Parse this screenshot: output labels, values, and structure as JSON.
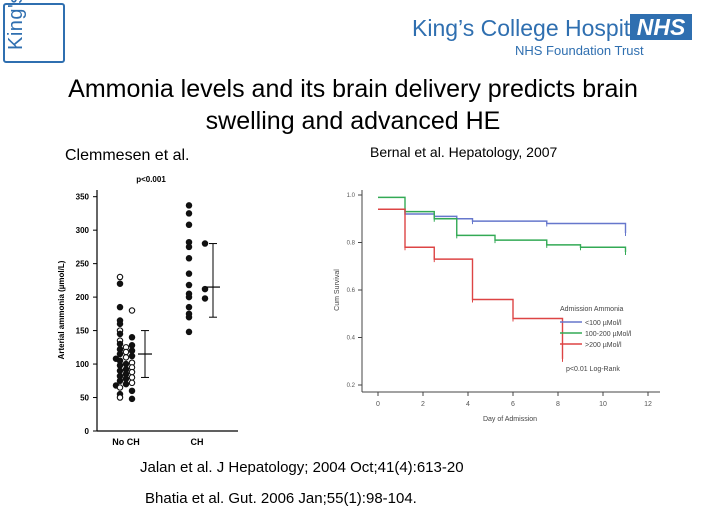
{
  "header": {
    "logo_text": "King's",
    "hospital_name": "King’s College Hospital",
    "trust_name": "NHS Foundation Trust",
    "nhs_badge": "NHS",
    "brand_color": "#2f6fb0"
  },
  "title": {
    "line1": "Ammonia levels and its brain delivery predicts brain",
    "line2": "swelling and advanced HE"
  },
  "left_caption": "Clemmesen et al.",
  "right_caption": "Bernal et al. Hepatology, 2007",
  "references": [
    "Jalan et al. J Hepatology; 2004 Oct;41(4):613-20",
    "Bhatia et al. Gut. 2006 Jan;55(1):98-104."
  ],
  "chart_data": [
    {
      "type": "scatter",
      "title": "p<0.001",
      "xlabel": "",
      "ylabel": "Arterial ammonia (µmol/L)",
      "categories": [
        "No CH",
        "CH"
      ],
      "y_ticks": [
        "0",
        "50",
        "100",
        "150",
        "200",
        "250",
        "300",
        "350"
      ],
      "ylim": [
        0,
        360
      ],
      "series": [
        {
          "name": "No CH",
          "marker": "mixed open/filled circle",
          "values": [
            230,
            220,
            185,
            180,
            165,
            160,
            150,
            145,
            140,
            135,
            130,
            128,
            125,
            122,
            120,
            118,
            115,
            112,
            110,
            108,
            105,
            102,
            100,
            98,
            95,
            92,
            90,
            88,
            85,
            82,
            80,
            78,
            75,
            72,
            70,
            68,
            65,
            60,
            55,
            50,
            48
          ],
          "mean": 115,
          "sd_upper": 150,
          "sd_lower": 80
        },
        {
          "name": "CH",
          "marker": "filled circle",
          "values": [
            337,
            325,
            308,
            282,
            280,
            275,
            258,
            235,
            218,
            212,
            205,
            200,
            198,
            185,
            175,
            170,
            148
          ],
          "mean": 215,
          "sd_upper": 280,
          "sd_lower": 170
        }
      ]
    },
    {
      "type": "line",
      "title": "",
      "xlabel": "Day of Admission",
      "ylabel": "Cum Survival",
      "x_ticks": [
        "0",
        "2",
        "4",
        "6",
        "8",
        "10",
        "12"
      ],
      "y_ticks": [
        "0.2",
        "0.4",
        "0.6",
        "0.8",
        "1.0"
      ],
      "xlim": [
        0,
        12
      ],
      "ylim": [
        0.2,
        1.0
      ],
      "legend": {
        "title": "Admission Ammonia",
        "entries": [
          "<100 µMol/l",
          "100-200 µMol/l",
          ">200 µMol/l"
        ],
        "note": "p<0.01 Log-Rank",
        "position": "bottom-right"
      },
      "series": [
        {
          "name": "<100 µMol/l",
          "color": "#6677cc",
          "x": [
            0,
            1.2,
            1.2,
            2.5,
            2.5,
            3.5,
            3.5,
            4.2,
            4.2,
            7.5,
            7.5,
            11,
            11
          ],
          "y": [
            0.94,
            0.94,
            0.92,
            0.92,
            0.91,
            0.91,
            0.9,
            0.9,
            0.89,
            0.89,
            0.88,
            0.88,
            0.84
          ]
        },
        {
          "name": "100-200 µMol/l",
          "color": "#33aa55",
          "x": [
            0,
            1.2,
            1.2,
            2.5,
            2.5,
            3.5,
            3.5,
            5.2,
            5.2,
            7.5,
            7.5,
            9,
            9,
            11,
            11
          ],
          "y": [
            0.99,
            0.99,
            0.93,
            0.93,
            0.9,
            0.9,
            0.83,
            0.83,
            0.81,
            0.81,
            0.79,
            0.79,
            0.78,
            0.78,
            0.76
          ]
        },
        {
          "name": ">200 µMol/l",
          "color": "#dd4444",
          "x": [
            0,
            1.2,
            1.2,
            2.5,
            2.5,
            4.2,
            4.2,
            6,
            6,
            8.2,
            8.2
          ],
          "y": [
            0.94,
            0.94,
            0.78,
            0.78,
            0.73,
            0.73,
            0.56,
            0.56,
            0.48,
            0.48,
            0.31
          ]
        }
      ]
    }
  ]
}
